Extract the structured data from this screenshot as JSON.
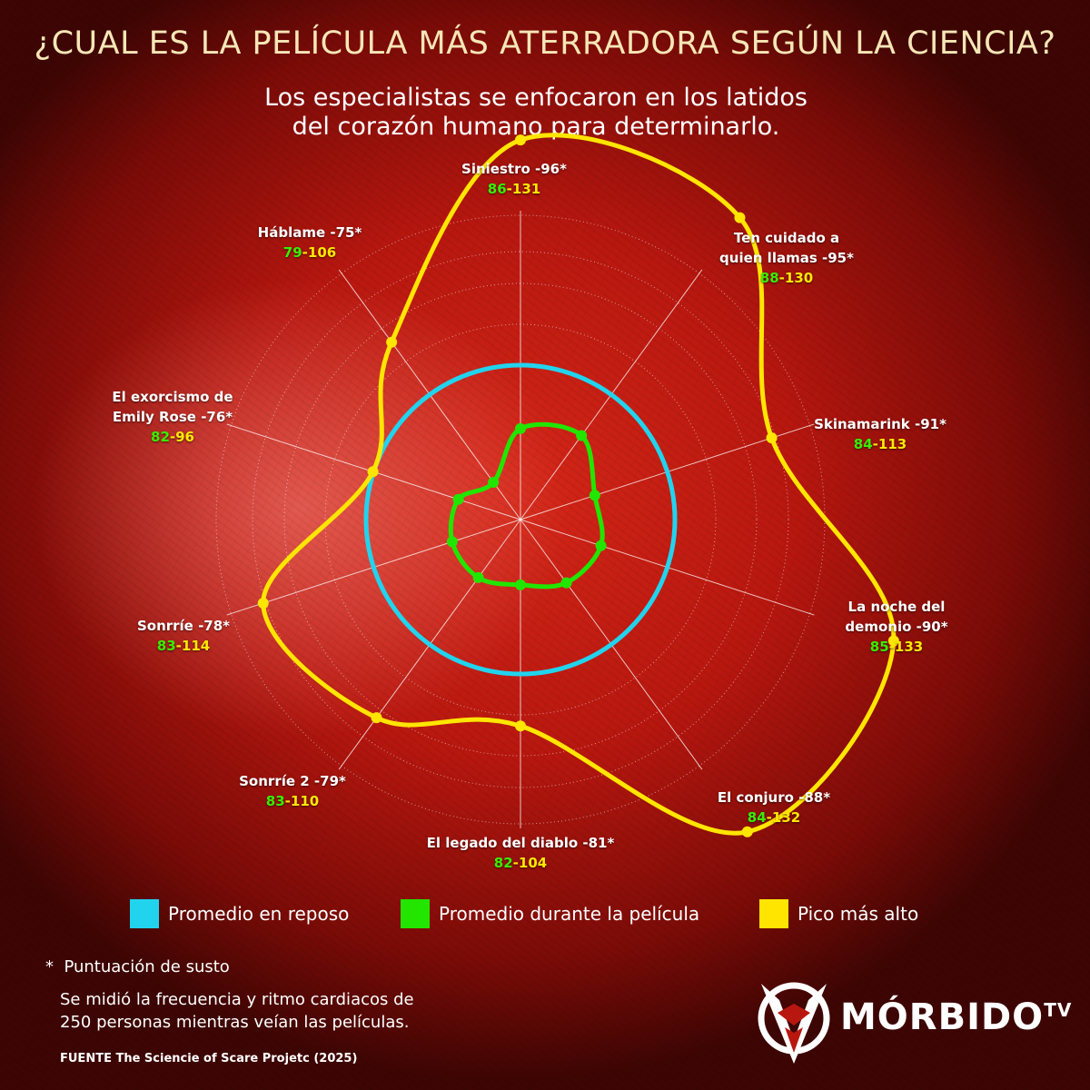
{
  "title": "¿CUAL ES LA PELÍCULA MÁS ATERRADORA SEGÚN LA CIENCIA?",
  "subtitle": [
    "Los especialistas se enfocaron en los latidos",
    "del corazón humano para determinarlo."
  ],
  "chart_data": {
    "type": "radar",
    "categories": [
      {
        "name": "Siniestro -96*",
        "rest_avg": null,
        "movie_avg": 86,
        "peak": 131
      },
      {
        "name": "Ten cuidado a\nquien llamas -95*",
        "rest_avg": null,
        "movie_avg": 88,
        "peak": 130
      },
      {
        "name": "Skinamarink -91*",
        "rest_avg": null,
        "movie_avg": 84,
        "peak": 113
      },
      {
        "name": "La noche del\ndemonio -90*",
        "rest_avg": null,
        "movie_avg": 85,
        "peak": 133
      },
      {
        "name": "El conjuro -88*",
        "rest_avg": null,
        "movie_avg": 84,
        "peak": 132
      },
      {
        "name": "El legado del diablo -81*",
        "rest_avg": null,
        "movie_avg": 82,
        "peak": 104
      },
      {
        "name": "Sonrríe 2 -79*",
        "rest_avg": null,
        "movie_avg": 83,
        "peak": 110
      },
      {
        "name": "Sonrríe -78*",
        "rest_avg": null,
        "movie_avg": 83,
        "peak": 114
      },
      {
        "name": "El exorcismo de\nEmily Rose -76*",
        "rest_avg": null,
        "movie_avg": 82,
        "peak": 96
      },
      {
        "name": "Háblame -75*",
        "rest_avg": null,
        "movie_avg": 79,
        "peak": 106
      }
    ],
    "series": [
      {
        "name": "Promedio en reposo",
        "color": "#22d3ee"
      },
      {
        "name": "Promedio durante la película",
        "color": "#22e600"
      },
      {
        "name": "Pico más alto",
        "color": "#ffe500"
      }
    ],
    "value_colors": {
      "movie_avg": "#38f000",
      "peak": "#ffe800"
    },
    "grid": true,
    "legend_position": "bottom"
  },
  "footnote_marker": "*",
  "footnote_label": "Puntuación de susto",
  "note": [
    "Se midió la frecuencia y ritmo cardiacos de",
    "250 personas mientras veían las películas."
  ],
  "source": "FUENTE The Sciencie of Scare Projetc (2025)",
  "logo": {
    "text": "MÓRBIDO",
    "suffix": "TV"
  }
}
